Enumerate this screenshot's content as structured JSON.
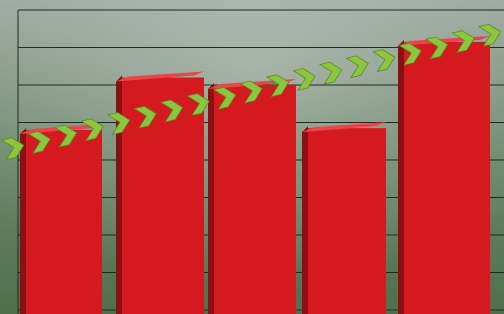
{
  "chart_data": {
    "type": "bar",
    "values": [
      4.8,
      6.2,
      6.0,
      4.85,
      7.15
    ],
    "color": "#d41a1f",
    "ylim": [
      0,
      8
    ],
    "yticks": [
      0,
      1,
      2,
      3,
      4,
      5,
      6,
      7,
      8
    ],
    "grid": true
  }
}
